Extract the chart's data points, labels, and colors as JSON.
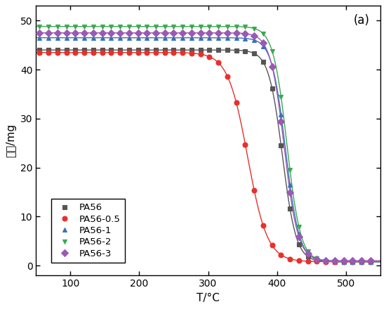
{
  "title": "(a)",
  "xlabel": "T/°C",
  "ylabel": "质量/mg",
  "xlim": [
    50,
    550
  ],
  "ylim": [
    -2,
    53
  ],
  "xticks": [
    100,
    200,
    300,
    400,
    500
  ],
  "yticks": [
    0,
    10,
    20,
    30,
    40,
    50
  ],
  "series": [
    {
      "label": "PA56",
      "color": "#555555",
      "marker": "s",
      "initial": 44.0,
      "final": 0.8,
      "onset": 378,
      "end": 438,
      "steepness": 6.0
    },
    {
      "label": "PA56-0.5",
      "color": "#e8302a",
      "marker": "o",
      "initial": 43.5,
      "final": 0.8,
      "onset": 300,
      "end": 415,
      "steepness": 8.0
    },
    {
      "label": "PA56-1",
      "color": "#3674b8",
      "marker": "^",
      "initial": 46.5,
      "final": 0.8,
      "onset": 385,
      "end": 440,
      "steepness": 5.5
    },
    {
      "label": "PA56-2",
      "color": "#3aaa50",
      "marker": "v",
      "initial": 48.8,
      "final": 0.8,
      "onset": 387,
      "end": 442,
      "steepness": 5.5
    },
    {
      "label": "PA56-3",
      "color": "#9b59b6",
      "marker": "D",
      "initial": 47.5,
      "final": 1.0,
      "onset": 383,
      "end": 438,
      "steepness": 5.5
    }
  ],
  "background_color": "#ffffff",
  "figwidth": 5.5,
  "figheight": 4.4,
  "dpi": 100
}
